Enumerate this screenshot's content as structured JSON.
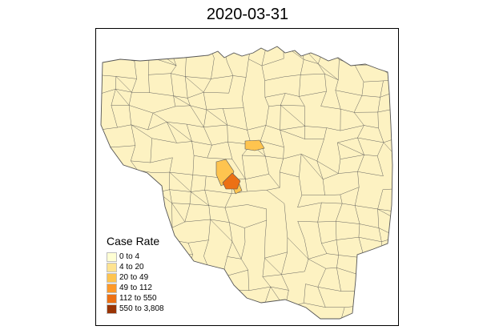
{
  "map": {
    "title": "2020-03-31",
    "legend": {
      "title": "Case Rate",
      "classes": [
        {
          "label": "0 to 4",
          "color": "#ffffd4"
        },
        {
          "label": "4 to 20",
          "color": "#fee391"
        },
        {
          "label": "20 to 49",
          "color": "#fec44f"
        },
        {
          "label": "49 to 112",
          "color": "#fe9929"
        },
        {
          "label": "112 to 550",
          "color": "#ec7014"
        },
        {
          "label": "550 to 3,808",
          "color": "#993404"
        }
      ]
    },
    "base_fill": "#fdf2c2",
    "border_color": "#555555",
    "highlighted_districts": [
      {
        "class_label": "20 to 49"
      },
      {
        "class_label": "20 to 49"
      },
      {
        "class_label": "20 to 49"
      },
      {
        "class_label": "112 to 550"
      }
    ]
  }
}
